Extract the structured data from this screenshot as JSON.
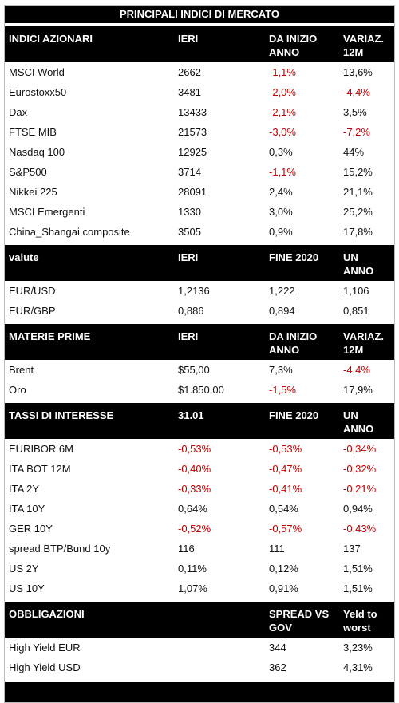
{
  "title": "PRINCIPALI INDICI DI MERCATO",
  "sections": [
    {
      "header": [
        "INDICI AZIONARI",
        "IERI",
        "DA INIZIO ANNO",
        "VARIAZ. 12M"
      ],
      "rows": [
        [
          "MSCI World",
          "2662",
          "-1,1%",
          "13,6%"
        ],
        [
          "Eurostoxx50",
          "3481",
          "-2,0%",
          "-4,4%"
        ],
        [
          "Dax",
          "13433",
          "-2,1%",
          "3,5%"
        ],
        [
          "FTSE MIB",
          "21573",
          "-3,0%",
          "-7,2%"
        ],
        [
          "Nasdaq 100",
          "12925",
          "0,3%",
          "44%"
        ],
        [
          "S&P500",
          "3714",
          "-1,1%",
          "15,2%"
        ],
        [
          "Nikkei 225",
          "28091",
          "2,4%",
          "21,1%"
        ],
        [
          "MSCI Emergenti",
          "1330",
          "3,0%",
          "25,2%"
        ],
        [
          "China_Shangai composite",
          "3505",
          "0,9%",
          "17,8%"
        ]
      ]
    },
    {
      "header": [
        "valute",
        "IERI",
        "FINE 2020",
        "UN ANNO FA"
      ],
      "rows": [
        [
          "EUR/USD",
          "1,2136",
          "1,222",
          "1,106"
        ],
        [
          "EUR/GBP",
          "0,886",
          "0,894",
          "0,851"
        ]
      ]
    },
    {
      "header": [
        "MATERIE PRIME",
        "IERI",
        "DA INIZIO ANNO",
        "VARIAZ. 12M"
      ],
      "rows": [
        [
          "Brent",
          "$55,00",
          "7,3%",
          "-4,4%"
        ],
        [
          "Oro",
          "$1.850,00",
          "-1,5%",
          "17,9%"
        ]
      ]
    },
    {
      "header": [
        "TASSI DI INTERESSE",
        "31.01",
        "FINE 2020",
        "UN ANNO FA"
      ],
      "rows": [
        [
          "EURIBOR 6M",
          "-0,53%",
          "-0,53%",
          "-0,34%"
        ],
        [
          "ITA BOT 12M",
          "-0,40%",
          "-0,47%",
          "-0,32%"
        ],
        [
          "ITA 2Y",
          "-0,33%",
          "-0,41%",
          "-0,21%"
        ],
        [
          "ITA 10Y",
          "0,64%",
          "0,54%",
          "0,94%"
        ],
        [
          "GER 10Y",
          "-0,52%",
          "-0,57%",
          "-0,43%"
        ],
        [
          "spread BTP/Bund 10y",
          "116",
          "111",
          "137"
        ],
        [
          "US 2Y",
          "0,11%",
          "0,12%",
          "1,51%"
        ],
        [
          "US 10Y",
          "1,07%",
          "0,91%",
          "1,51%"
        ]
      ]
    },
    {
      "header": [
        "OBBLIGAZIONI",
        null,
        "SPREAD VS GOV",
        "Yeld to worst"
      ],
      "rows": [
        [
          "High Yield EUR",
          null,
          "344",
          "3,23%"
        ],
        [
          "High Yield USD",
          null,
          "362",
          "4,31%"
        ]
      ]
    }
  ]
}
